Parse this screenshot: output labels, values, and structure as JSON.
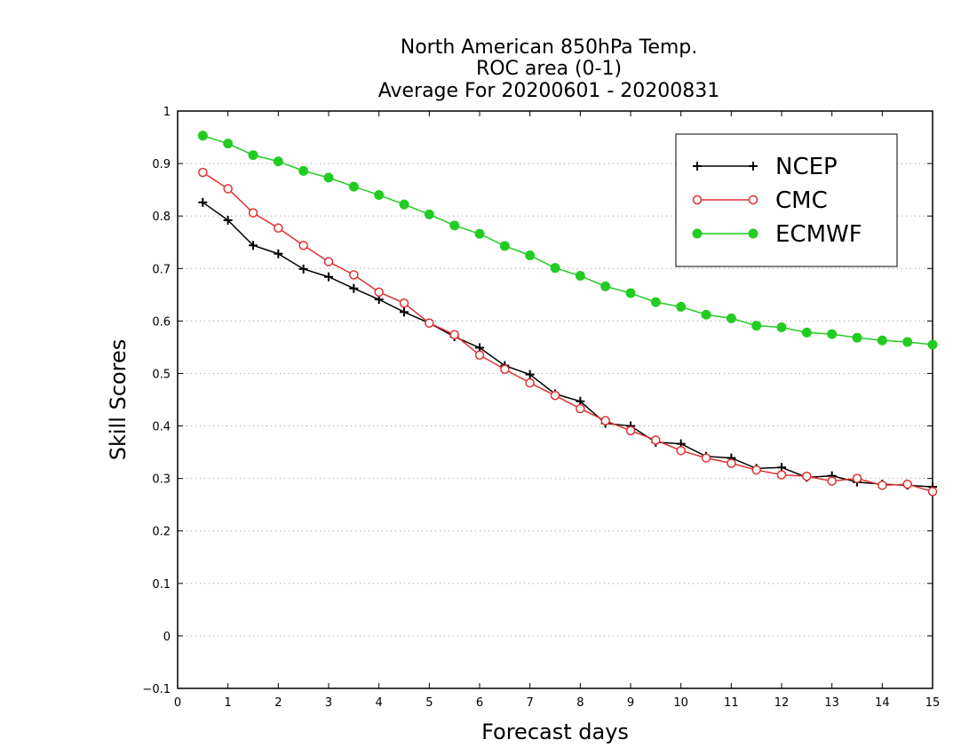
{
  "chart_data": {
    "type": "line",
    "title_lines": [
      "North American 850hPa Temp.",
      "ROC area (0-1)",
      "Average For 20200601 - 20200831"
    ],
    "xlabel": "Forecast days",
    "ylabel": "Skill Scores",
    "xlim": [
      0,
      15
    ],
    "ylim": [
      -0.1,
      1
    ],
    "x_ticks": [
      0,
      1,
      2,
      3,
      4,
      5,
      6,
      7,
      8,
      9,
      10,
      11,
      12,
      13,
      14,
      15
    ],
    "y_tick_labels": [
      "−0.1",
      "0",
      "0.1",
      "0.2",
      "0.3",
      "0.4",
      "0.5",
      "0.6",
      "0.7",
      "0.8",
      "0.9",
      "1"
    ],
    "y_ticks": [
      -0.1,
      0,
      0.1,
      0.2,
      0.3,
      0.4,
      0.5,
      0.6,
      0.7,
      0.8,
      0.9,
      1
    ],
    "grid": "horizontal dotted",
    "legend_position": "top-right",
    "x": [
      0.5,
      1,
      1.5,
      2,
      2.5,
      3,
      3.5,
      4,
      4.5,
      5,
      5.5,
      6,
      6.5,
      7,
      7.5,
      8,
      8.5,
      9,
      9.5,
      10,
      10.5,
      11,
      11.5,
      12,
      12.5,
      13,
      13.5,
      14,
      14.5,
      15
    ],
    "series": [
      {
        "name": "NCEP",
        "color": "#000000",
        "marker": "plus",
        "values": [
          0.826,
          0.792,
          0.744,
          0.728,
          0.699,
          0.684,
          0.662,
          0.641,
          0.617,
          0.596,
          0.57,
          0.549,
          0.515,
          0.498,
          0.461,
          0.447,
          0.405,
          0.4,
          0.369,
          0.366,
          0.342,
          0.339,
          0.319,
          0.321,
          0.302,
          0.305,
          0.293,
          0.289,
          0.287,
          0.284
        ]
      },
      {
        "name": "CMC",
        "color": "#e03030",
        "marker": "open-circle",
        "values": [
          0.883,
          0.852,
          0.806,
          0.777,
          0.744,
          0.713,
          0.688,
          0.655,
          0.634,
          0.596,
          0.574,
          0.535,
          0.508,
          0.482,
          0.458,
          0.433,
          0.41,
          0.391,
          0.373,
          0.353,
          0.339,
          0.329,
          0.316,
          0.307,
          0.304,
          0.295,
          0.3,
          0.287,
          0.289,
          0.275
        ]
      },
      {
        "name": "ECMWF",
        "color": "#22cc22",
        "marker": "filled-circle",
        "values": [
          0.953,
          0.938,
          0.916,
          0.904,
          0.886,
          0.873,
          0.856,
          0.84,
          0.822,
          0.803,
          0.782,
          0.766,
          0.743,
          0.725,
          0.701,
          0.686,
          0.666,
          0.653,
          0.636,
          0.627,
          0.612,
          0.605,
          0.591,
          0.588,
          0.578,
          0.575,
          0.568,
          0.563,
          0.56,
          0.555
        ]
      }
    ]
  }
}
